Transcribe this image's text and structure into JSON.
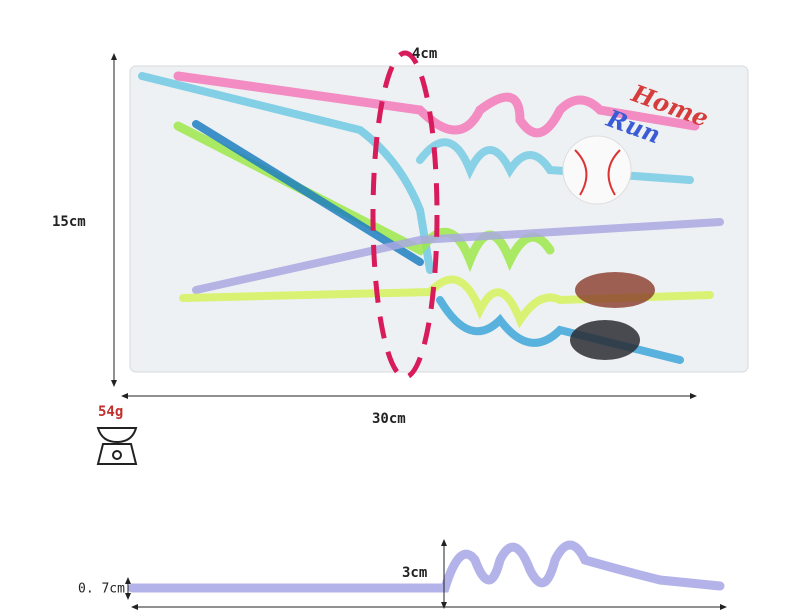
{
  "dimensions": {
    "diameter": "4cm",
    "height": "15cm",
    "length": "30cm",
    "weight": "54g",
    "coil_height": "3cm",
    "straw_diameter": "0. 7cm"
  },
  "bag_label": {
    "line1": "Home",
    "line2": "Run"
  }
}
